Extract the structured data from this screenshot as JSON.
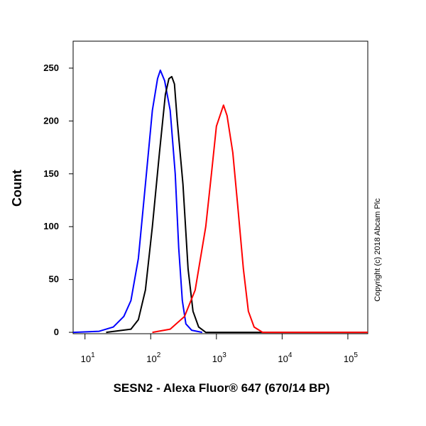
{
  "chart_data": {
    "type": "line",
    "x_label": "SESN2 - Alexa Fluor® 647 (670/14 BP)",
    "y_label": "Count",
    "side_note": "Copyright (c) 2018 Abcam Plc",
    "xscale": "log",
    "xlim": [
      6.6,
      201000
    ],
    "ylim": [
      -1.3,
      275.5
    ],
    "xticks": [
      {
        "value": 10,
        "label": "10",
        "exponent": "1"
      },
      {
        "value": 100,
        "label": "10",
        "exponent": "2"
      },
      {
        "value": 1000,
        "label": "10",
        "exponent": "3"
      },
      {
        "value": 10000,
        "label": "10",
        "exponent": "4"
      },
      {
        "value": 100000,
        "label": "10",
        "exponent": "5"
      }
    ],
    "yticks": [
      0,
      50,
      100,
      150,
      200,
      250
    ],
    "series": [
      {
        "color": "#0000ff",
        "x": [
          6.6,
          16.4,
          27,
          39,
          50,
          65,
          83,
          106,
          127,
          140,
          163,
          198,
          236,
          267,
          303,
          343,
          419,
          608
        ],
        "values": [
          0,
          1,
          5,
          15,
          30,
          70,
          140,
          210,
          240,
          248,
          238,
          210,
          150,
          80,
          30,
          8,
          2,
          0
        ]
      },
      {
        "color": "#000000",
        "x": [
          21,
          50,
          65,
          83,
          106,
          136,
          167,
          189,
          209,
          230,
          254,
          310,
          370,
          440,
          537,
          689,
          201000
        ],
        "values": [
          0,
          3,
          12,
          40,
          100,
          170,
          225,
          240,
          242,
          235,
          200,
          140,
          60,
          20,
          5,
          0,
          0
        ]
      },
      {
        "color": "#ff0000",
        "x": [
          106,
          198,
          327,
          475,
          689,
          840,
          1000,
          1132,
          1282,
          1452,
          1774,
          2110,
          2574,
          3065,
          3744,
          5047,
          201000
        ],
        "values": [
          0,
          3,
          15,
          40,
          100,
          150,
          195,
          205,
          215,
          205,
          170,
          120,
          60,
          20,
          5,
          0,
          0
        ]
      }
    ]
  }
}
